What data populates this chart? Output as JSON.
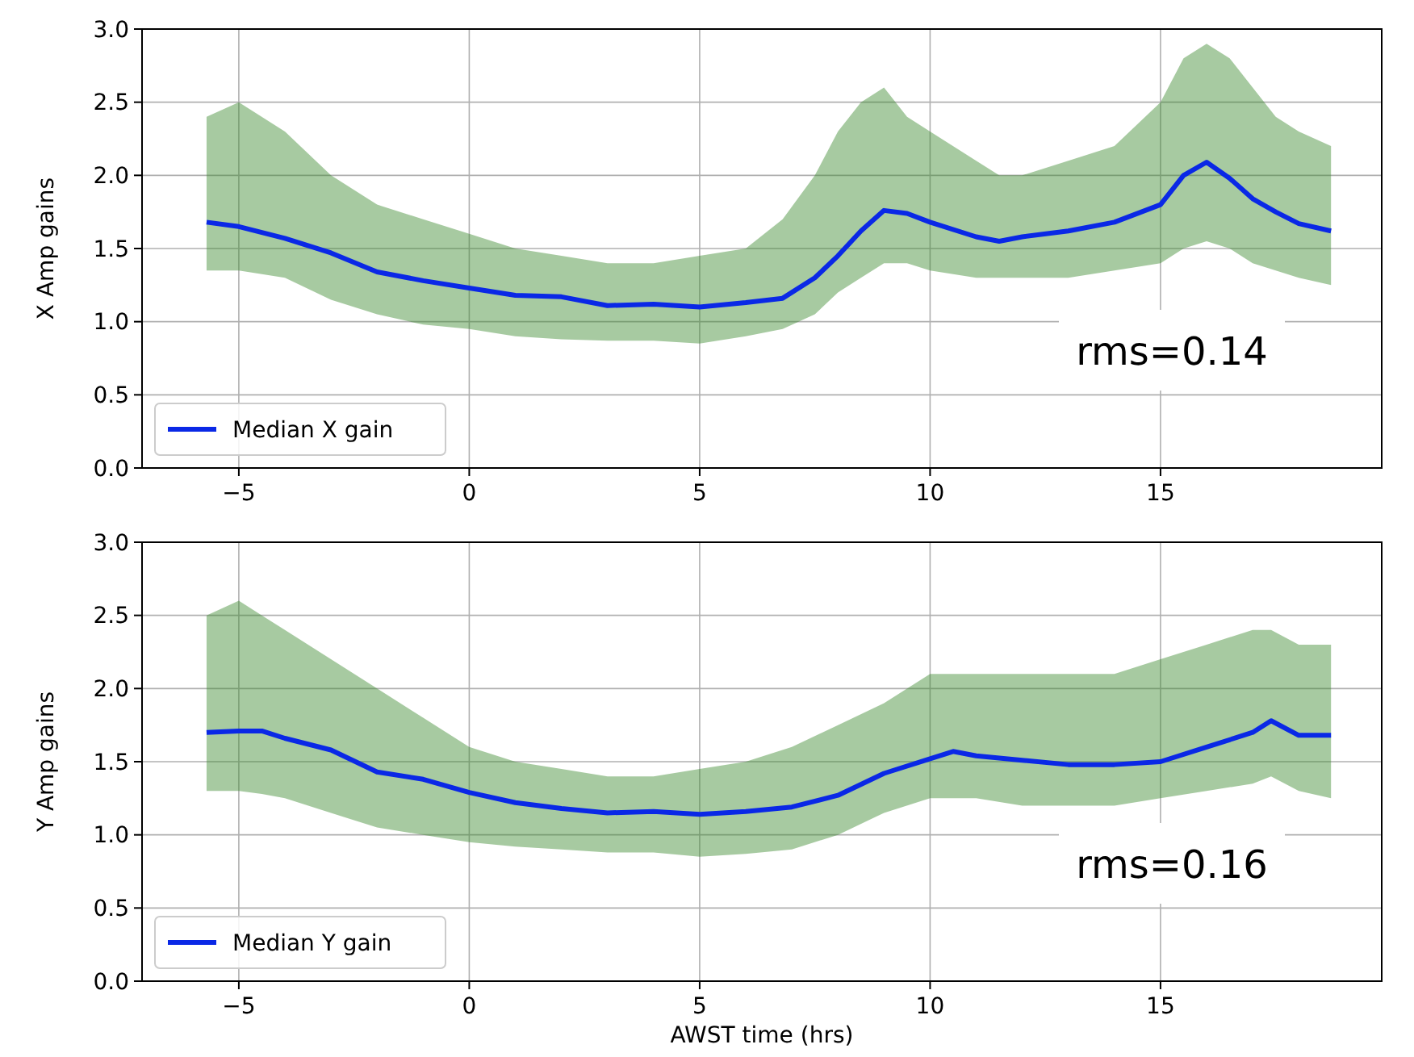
{
  "chart_data": [
    {
      "type": "line",
      "ylabel": "X Amp gains",
      "xlim": [
        -7.1,
        19.8
      ],
      "ylim": [
        0,
        3
      ],
      "xticks": [
        {
          "value": -5,
          "label": "−5"
        },
        0,
        5,
        10,
        15
      ],
      "yticks": [
        {
          "value": 0,
          "label": "0.0"
        },
        0.5,
        {
          "value": 1,
          "label": "1.0"
        },
        1.5,
        {
          "value": 2,
          "label": "2.0"
        },
        2.5,
        {
          "value": 3,
          "label": "3.0"
        }
      ],
      "grid": true,
      "legend": "bottom left",
      "annotations": [
        "rms=0.14"
      ],
      "x": [
        -5.7,
        -5,
        -4,
        -3,
        -2,
        -1,
        0,
        1,
        2,
        3,
        4,
        5,
        6,
        6.8,
        7.5,
        8,
        8.5,
        9,
        9.5,
        10,
        11,
        11.5,
        12,
        13,
        14,
        15,
        15.5,
        16,
        16.5,
        17,
        17.5,
        18,
        18.7
      ],
      "series": [
        {
          "name": "Median X gain",
          "color": "#0a28e6",
          "values": [
            1.68,
            1.65,
            1.57,
            1.47,
            1.34,
            1.28,
            1.23,
            1.18,
            1.17,
            1.11,
            1.12,
            1.1,
            1.13,
            1.16,
            1.3,
            1.45,
            1.62,
            1.76,
            1.74,
            1.68,
            1.58,
            1.55,
            1.58,
            1.62,
            1.68,
            1.8,
            2.0,
            2.09,
            1.98,
            1.84,
            1.75,
            1.67,
            1.62
          ],
          "lower": [
            1.35,
            1.35,
            1.3,
            1.15,
            1.05,
            0.98,
            0.95,
            0.9,
            0.88,
            0.87,
            0.87,
            0.85,
            0.9,
            0.95,
            1.05,
            1.2,
            1.3,
            1.4,
            1.4,
            1.35,
            1.3,
            1.3,
            1.3,
            1.3,
            1.35,
            1.4,
            1.5,
            1.55,
            1.5,
            1.4,
            1.35,
            1.3,
            1.25
          ],
          "upper": [
            2.4,
            2.5,
            2.3,
            2.0,
            1.8,
            1.7,
            1.6,
            1.5,
            1.45,
            1.4,
            1.4,
            1.45,
            1.5,
            1.7,
            2.0,
            2.3,
            2.5,
            2.6,
            2.4,
            2.3,
            2.1,
            2.0,
            2.0,
            2.1,
            2.2,
            2.5,
            2.8,
            2.9,
            2.8,
            2.6,
            2.4,
            2.3,
            2.2
          ]
        }
      ]
    },
    {
      "type": "line",
      "ylabel": "Y Amp gains",
      "xlabel": "AWST time (hrs)",
      "xlim": [
        -7.1,
        19.8
      ],
      "ylim": [
        0,
        3
      ],
      "xticks": [
        {
          "value": -5,
          "label": "−5"
        },
        0,
        5,
        10,
        15
      ],
      "yticks": [
        {
          "value": 0,
          "label": "0.0"
        },
        0.5,
        {
          "value": 1,
          "label": "1.0"
        },
        1.5,
        {
          "value": 2,
          "label": "2.0"
        },
        2.5,
        {
          "value": 3,
          "label": "3.0"
        }
      ],
      "grid": true,
      "legend": "bottom left",
      "annotations": [
        "rms=0.16"
      ],
      "x": [
        -5.7,
        -5,
        -4.5,
        -4,
        -3,
        -2,
        -1,
        0,
        1,
        2,
        3,
        4,
        5,
        6,
        7,
        8,
        9,
        10,
        10.5,
        11,
        12,
        13,
        14,
        15,
        16,
        17,
        17.4,
        18,
        18.7
      ],
      "series": [
        {
          "name": "Median Y gain",
          "color": "#0a28e6",
          "values": [
            1.7,
            1.71,
            1.71,
            1.66,
            1.58,
            1.43,
            1.38,
            1.29,
            1.22,
            1.18,
            1.15,
            1.16,
            1.14,
            1.16,
            1.19,
            1.27,
            1.42,
            1.52,
            1.57,
            1.54,
            1.51,
            1.48,
            1.48,
            1.5,
            1.6,
            1.7,
            1.78,
            1.68,
            1.68
          ],
          "lower": [
            1.3,
            1.3,
            1.28,
            1.25,
            1.15,
            1.05,
            1.0,
            0.95,
            0.92,
            0.9,
            0.88,
            0.88,
            0.85,
            0.87,
            0.9,
            1.0,
            1.15,
            1.25,
            1.25,
            1.25,
            1.2,
            1.2,
            1.2,
            1.25,
            1.3,
            1.35,
            1.4,
            1.3,
            1.25
          ],
          "upper": [
            2.5,
            2.6,
            2.5,
            2.4,
            2.2,
            2.0,
            1.8,
            1.6,
            1.5,
            1.45,
            1.4,
            1.4,
            1.45,
            1.5,
            1.6,
            1.75,
            1.9,
            2.1,
            2.1,
            2.1,
            2.1,
            2.1,
            2.1,
            2.2,
            2.3,
            2.4,
            2.4,
            2.3,
            2.3
          ]
        }
      ]
    }
  ]
}
